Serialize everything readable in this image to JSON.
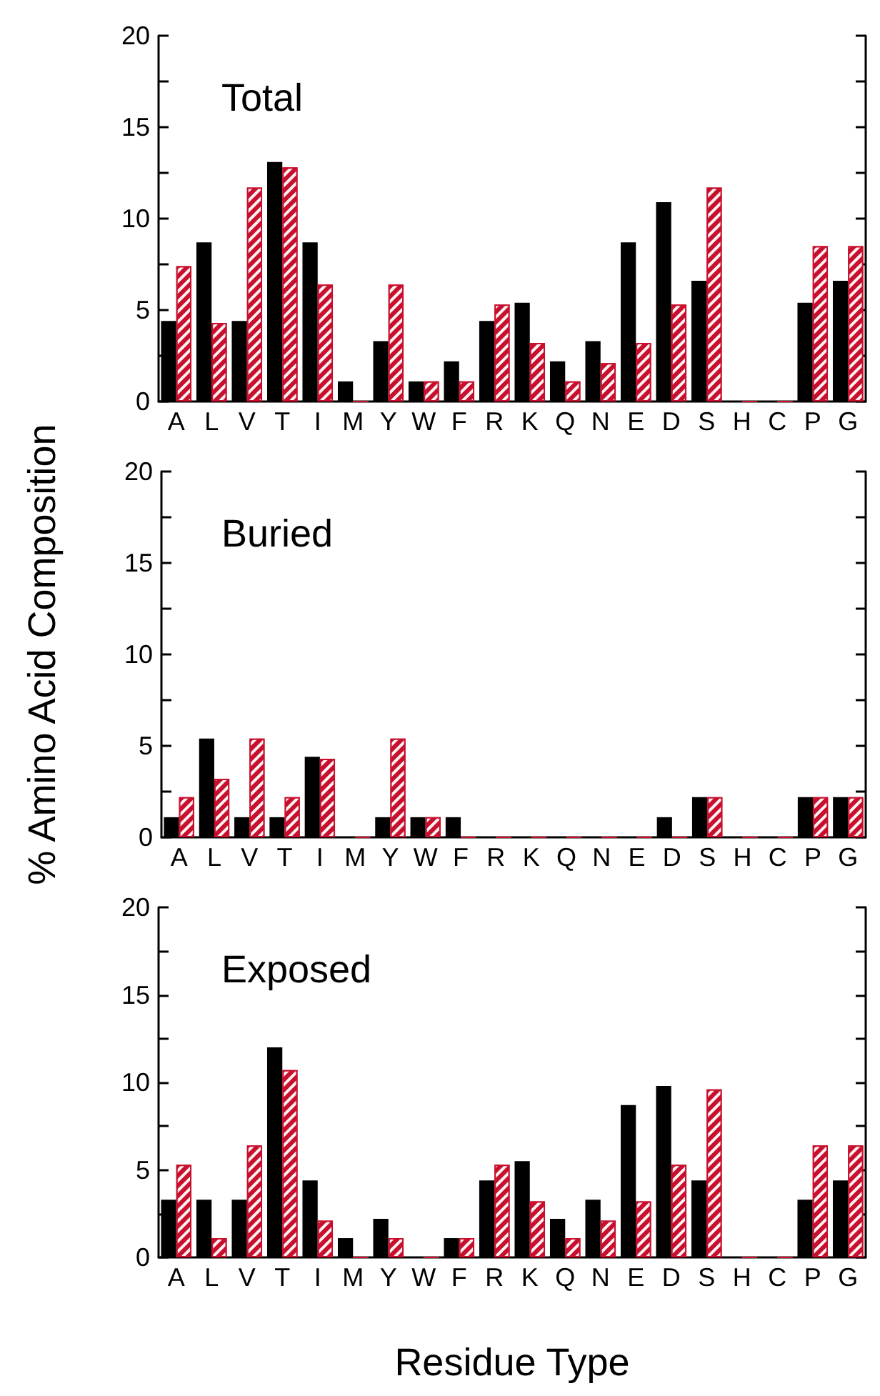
{
  "chart_data": [
    {
      "type": "bar",
      "title": "Total",
      "categories": [
        "A",
        "L",
        "V",
        "T",
        "I",
        "M",
        "Y",
        "W",
        "F",
        "R",
        "K",
        "Q",
        "N",
        "E",
        "D",
        "S",
        "H",
        "C",
        "P",
        "G"
      ],
      "series": [
        {
          "color": "#000000",
          "values": [
            4.4,
            8.7,
            4.4,
            13.1,
            8.7,
            1.1,
            3.3,
            1.1,
            2.2,
            4.4,
            5.4,
            2.2,
            3.3,
            8.7,
            10.9,
            6.6,
            0,
            0,
            5.4,
            6.6
          ]
        },
        {
          "color": "#c8102e",
          "values": [
            7.4,
            4.3,
            11.7,
            12.8,
            6.4,
            0,
            6.4,
            1.1,
            1.1,
            5.3,
            3.2,
            1.1,
            2.1,
            3.2,
            5.3,
            11.7,
            0,
            0,
            8.5,
            8.5
          ]
        }
      ],
      "ylim": [
        0,
        20
      ],
      "yticks": [
        0,
        {
          "value": 2.5,
          "label": null
        },
        5,
        {
          "value": 7.5,
          "label": null
        },
        10,
        {
          "value": 12.5,
          "label": null
        },
        15,
        {
          "value": 17.5,
          "label": null
        },
        20
      ],
      "grid": false
    },
    {
      "type": "bar",
      "title": "Buried",
      "ylabel": "% Amino Acid Composition",
      "categories": [
        "A",
        "L",
        "V",
        "T",
        "I",
        "M",
        "Y",
        "W",
        "F",
        "R",
        "K",
        "Q",
        "N",
        "E",
        "D",
        "S",
        "H",
        "C",
        "P",
        "G"
      ],
      "series": [
        {
          "color": "#000000",
          "values": [
            1.1,
            5.4,
            1.1,
            1.1,
            4.4,
            0,
            1.1,
            1.1,
            1.1,
            0,
            0,
            0,
            0,
            0,
            1.1,
            2.2,
            0,
            0,
            2.2,
            2.2
          ]
        },
        {
          "color": "#c8102e",
          "values": [
            2.2,
            3.2,
            5.4,
            2.2,
            4.3,
            0,
            5.4,
            1.1,
            0,
            0,
            0,
            0,
            0,
            0,
            0,
            2.2,
            0,
            0,
            2.2,
            2.2
          ]
        }
      ],
      "ylim": [
        0,
        20
      ],
      "yticks": [
        0,
        {
          "value": 2.5,
          "label": null
        },
        5,
        {
          "value": 7.5,
          "label": null
        },
        10,
        {
          "value": 12.5,
          "label": null
        },
        15,
        {
          "value": 17.5,
          "label": null
        },
        20
      ],
      "grid": false
    },
    {
      "type": "bar",
      "title": "Exposed",
      "xlabel": "Residue Type",
      "categories": [
        "A",
        "L",
        "V",
        "T",
        "I",
        "M",
        "Y",
        "W",
        "F",
        "R",
        "K",
        "Q",
        "N",
        "E",
        "D",
        "S",
        "H",
        "C",
        "P",
        "G"
      ],
      "series": [
        {
          "color": "#000000",
          "values": [
            3.3,
            3.3,
            3.3,
            12.0,
            4.4,
            1.1,
            2.2,
            0,
            1.1,
            4.4,
            5.5,
            2.2,
            3.3,
            8.7,
            9.8,
            4.4,
            0,
            0,
            3.3,
            4.4
          ]
        },
        {
          "color": "#c8102e",
          "values": [
            5.3,
            1.1,
            6.4,
            10.7,
            2.1,
            0,
            1.1,
            0,
            1.1,
            5.3,
            3.2,
            1.1,
            2.1,
            3.2,
            5.3,
            9.6,
            0,
            0,
            6.4,
            6.4
          ]
        }
      ],
      "ylim": [
        0,
        20
      ],
      "yticks": [
        0,
        {
          "value": 2.5,
          "label": null
        },
        5,
        {
          "value": 7.5,
          "label": null
        },
        10,
        {
          "value": 12.5,
          "label": null
        },
        15,
        {
          "value": 17.5,
          "label": null
        },
        20
      ],
      "grid": false
    }
  ]
}
